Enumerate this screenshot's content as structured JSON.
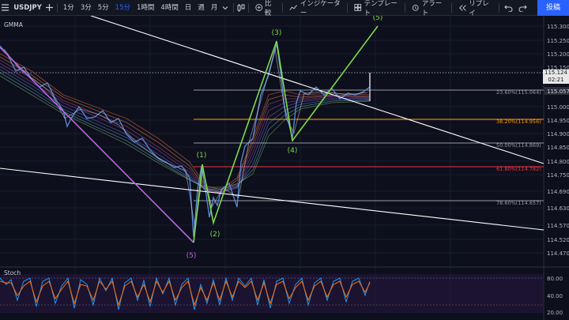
{
  "toolbar": {
    "symbol": "USDJPY",
    "timeframes": [
      "1分",
      "3分",
      "5分",
      "15分",
      "1時間",
      "4時間",
      "日",
      "週",
      "月"
    ],
    "active_timeframe_index": 3,
    "compare_label": "比較",
    "indicator_label": "インジケーター",
    "template_label": "テンプレート",
    "alert_label": "アラート",
    "replay_label": "リプレイ",
    "buy_label": "投稿"
  },
  "main_pane": {
    "indicator_name": "GMMA",
    "current_price": "115.124",
    "countdown": "02:21",
    "last_line_price": "115.057",
    "price_axis": [
      "115.300",
      "115.250",
      "115.200",
      "115.150",
      "115.000",
      "114.950",
      "114.900",
      "114.850",
      "114.800",
      "114.750",
      "114.690",
      "114.630",
      "114.570",
      "114.520",
      "114.470"
    ],
    "fib_levels": [
      {
        "label": "23.60%(115.064)",
        "color": "#9598a1"
      },
      {
        "label": "38.20%(114.956)",
        "color": "#ff9800"
      },
      {
        "label": "50.00%(114.869)",
        "color": "#9598a1"
      },
      {
        "label": "61.80%(114.782)",
        "color": "#f23645"
      },
      {
        "label": "78.60%(114.657)",
        "color": "#9598a1"
      }
    ],
    "waves": [
      "(1)",
      "(2)",
      "(3)",
      "(4)",
      "(5)",
      "(5)"
    ]
  },
  "stoch_pane": {
    "indicator_name": "Stoch",
    "axis": [
      "80.00",
      "40.00",
      "20.00"
    ]
  },
  "colors": {
    "background": "#0d0f1c",
    "wave_green": "#7cda4a",
    "wave_purple": "#b36ad8",
    "trendline": "#ffffff"
  }
}
